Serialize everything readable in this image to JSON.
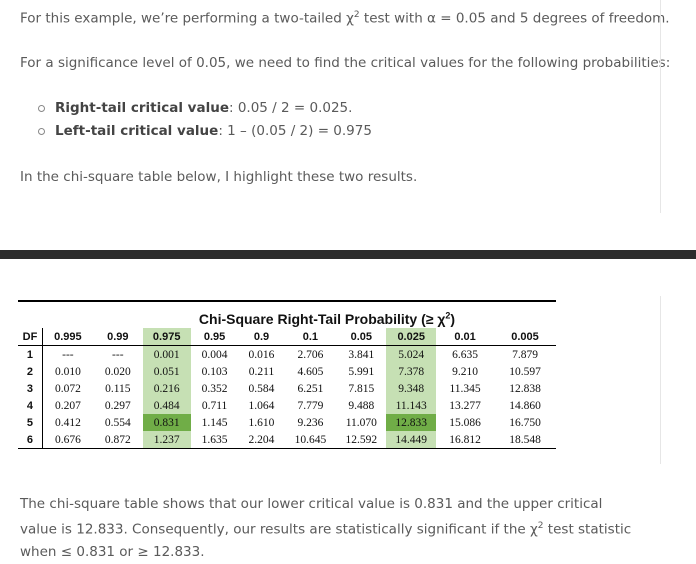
{
  "intro": {
    "line1_a": "For this example, we’re performing a two-tailed χ",
    "line1_sup": "2",
    "line1_b": " test with α = 0.05 and 5 degrees of freedom.",
    "line2": "For a significance level of 0.05, we need to find the critical values for the following probabilities:",
    "bullets": [
      {
        "label": "Right-tail critical value",
        "value": ": 0.05 / 2 = 0.025."
      },
      {
        "label": "Left-tail critical value",
        "value": ": 1 – (0.05 / 2) = 0.975"
      }
    ],
    "line3": "In the chi-square table below, I highlight these two results."
  },
  "table": {
    "title": "Chi-Square Right-Tail Probability (≥ χ",
    "title_sup": "2",
    "title_end": ")",
    "headers": [
      "DF",
      "0.995",
      "0.99",
      "0.975",
      "0.95",
      "0.9",
      "0.1",
      "0.05",
      "0.025",
      "0.01",
      "0.005"
    ],
    "rows": [
      [
        "1",
        "---",
        "---",
        "0.001",
        "0.004",
        "0.016",
        "2.706",
        "3.841",
        "5.024",
        "6.635",
        "7.879"
      ],
      [
        "2",
        "0.010",
        "0.020",
        "0.051",
        "0.103",
        "0.211",
        "4.605",
        "5.991",
        "7.378",
        "9.210",
        "10.597"
      ],
      [
        "3",
        "0.072",
        "0.115",
        "0.216",
        "0.352",
        "0.584",
        "6.251",
        "7.815",
        "9.348",
        "11.345",
        "12.838"
      ],
      [
        "4",
        "0.207",
        "0.297",
        "0.484",
        "0.711",
        "1.064",
        "7.779",
        "9.488",
        "11.143",
        "13.277",
        "14.860"
      ],
      [
        "5",
        "0.412",
        "0.554",
        "0.831",
        "1.145",
        "1.610",
        "9.236",
        "11.070",
        "12.833",
        "15.086",
        "16.750"
      ],
      [
        "6",
        "0.676",
        "0.872",
        "1.237",
        "1.635",
        "2.204",
        "10.645",
        "12.592",
        "14.449",
        "16.812",
        "18.548"
      ]
    ],
    "highlight_colors": {
      "light": "#c6e0b4",
      "dark": "#70ad47"
    }
  },
  "conclusion": {
    "text_a": "The chi-square table shows that our lower critical value is 0.831 and the upper critical value is 12.833. Consequently, our results are statistically significant if the χ",
    "sup": "2",
    "text_b": " test statistic when ≤ 0.831 or ≥ 12.833."
  }
}
